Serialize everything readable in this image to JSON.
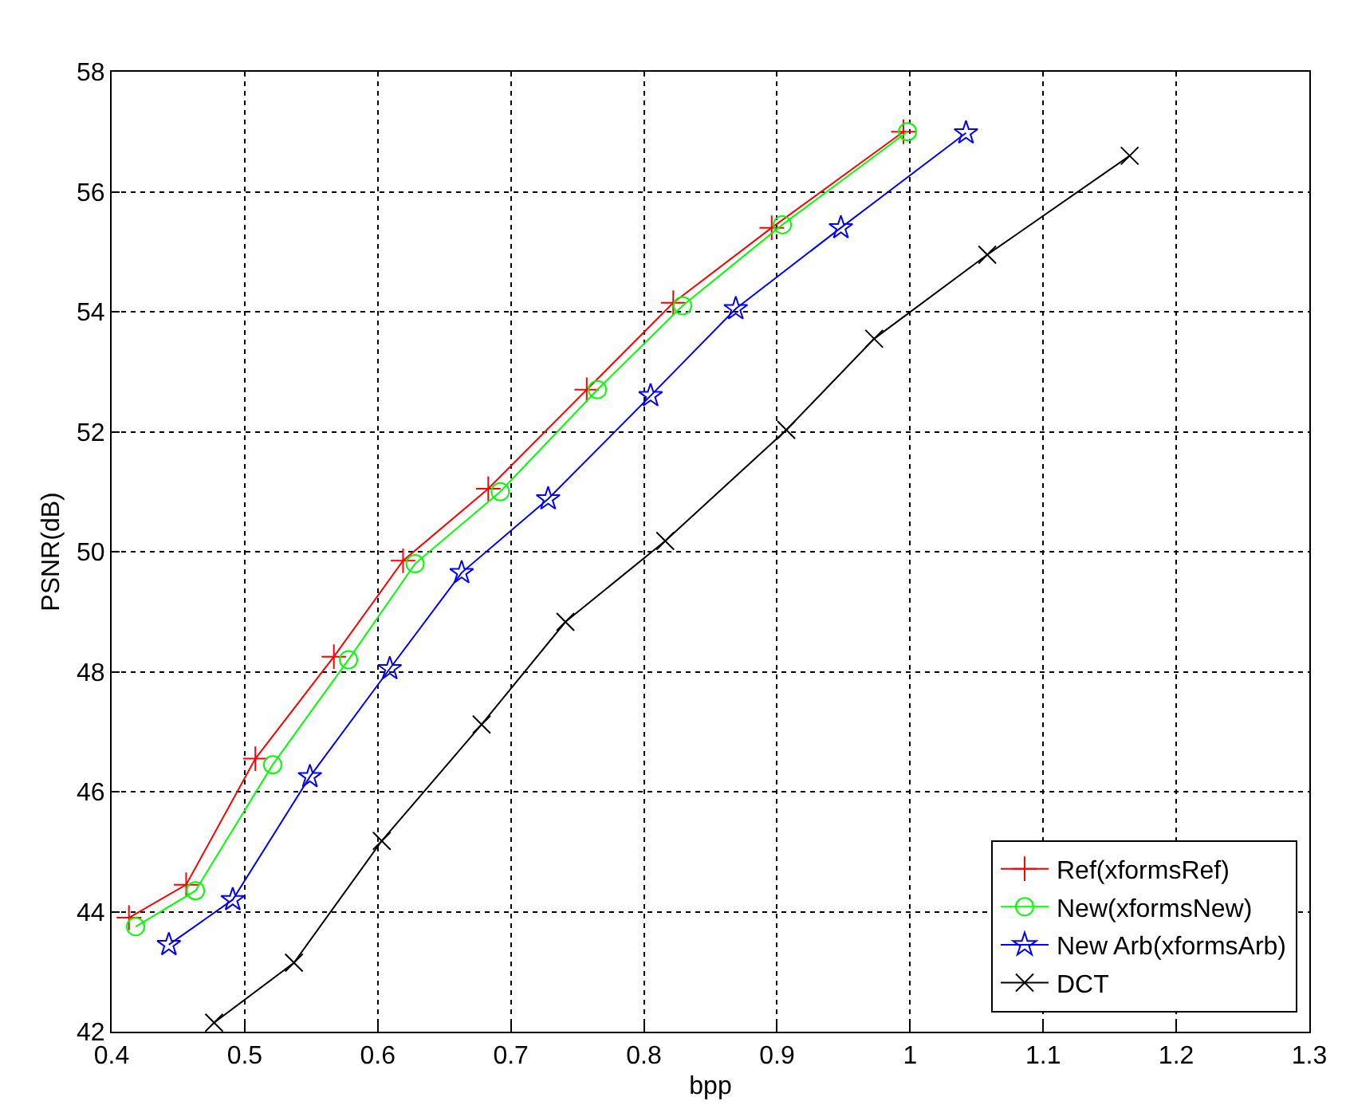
{
  "chart_data": {
    "type": "line",
    "xlabel": "bpp",
    "ylabel": "PSNR(dB)",
    "xlim": [
      0.4,
      1.3
    ],
    "xticks": [
      0.4,
      0.5,
      0.6,
      0.7,
      0.8,
      0.9,
      1,
      1.1,
      1.2,
      1.3
    ],
    "ylim": [
      42,
      58
    ],
    "yticks": [
      42,
      44,
      46,
      48,
      50,
      52,
      54,
      56,
      58
    ],
    "grid": true,
    "legend": "bottom right",
    "line_style": "solid",
    "series": [
      {
        "name": "Ref(xformsRef)",
        "color": "#ff0000",
        "marker": "cross",
        "x": [
          0.413,
          0.456,
          0.508,
          0.567,
          0.619,
          0.683,
          0.757,
          0.822,
          0.896,
          0.995
        ],
        "values": [
          43.9,
          44.45,
          46.55,
          48.25,
          49.85,
          51.05,
          52.7,
          54.15,
          55.4,
          57.0
        ]
      },
      {
        "name": "New(xformsNew)",
        "color": "#00ff00",
        "marker": "circle",
        "x": [
          0.418,
          0.463,
          0.521,
          0.578,
          0.628,
          0.692,
          0.765,
          0.829,
          0.904,
          0.998
        ],
        "values": [
          43.75,
          44.35,
          46.45,
          48.2,
          49.8,
          51.0,
          52.7,
          54.1,
          55.45,
          57.0
        ]
      },
      {
        "name": "New Arb(xformsArb)",
        "color": "#0000ff",
        "marker": "star",
        "x": [
          0.443,
          0.491,
          0.549,
          0.609,
          0.663,
          0.728,
          0.805,
          0.869,
          0.948,
          1.042
        ],
        "values": [
          43.45,
          44.2,
          46.25,
          48.05,
          49.65,
          50.88,
          52.6,
          54.05,
          55.4,
          56.98
        ]
      },
      {
        "name": "DCT",
        "color": "#000000",
        "marker": "x",
        "x": [
          0.477,
          0.537,
          0.603,
          0.678,
          0.741,
          0.816,
          0.907,
          0.973,
          1.058,
          1.165
        ],
        "values": [
          42.15,
          43.15,
          45.18,
          47.12,
          48.83,
          50.18,
          52.03,
          53.55,
          54.95,
          56.6
        ]
      }
    ]
  }
}
